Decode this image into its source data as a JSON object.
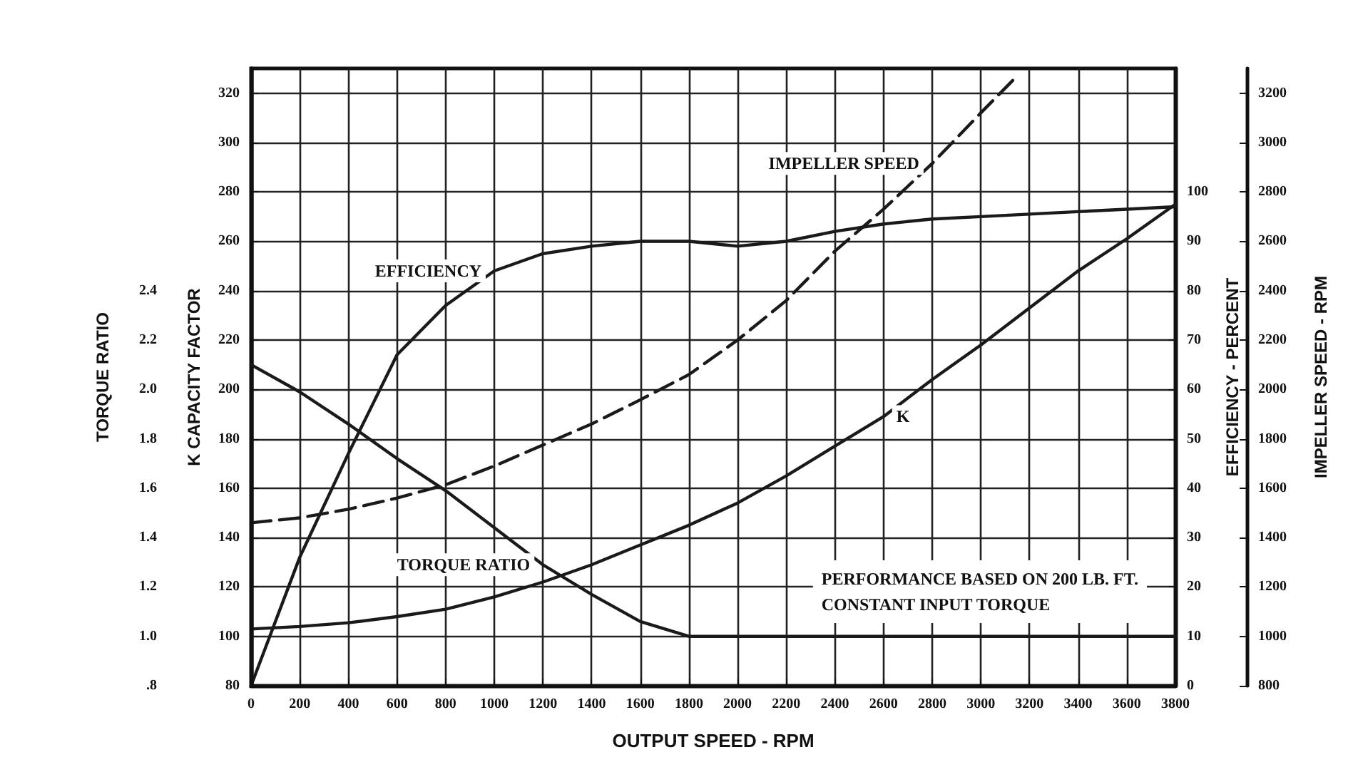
{
  "chart_data": [
    {
      "type": "line",
      "xlabel": "OUTPUT SPEED - RPM",
      "ylabel": "K CAPACITY FACTOR",
      "y2label": "EFFICIENCY - PERCENT",
      "y3label": "IMPELLER SPEED - RPM",
      "x": [
        0,
        200,
        400,
        600,
        800,
        1000,
        1200,
        1400,
        1600,
        1800,
        2000,
        2200,
        2400,
        2600,
        2800,
        3000,
        3200,
        3400,
        3600,
        3800
      ],
      "xlim": [
        0,
        3800
      ],
      "xticks": [
        0,
        200,
        400,
        600,
        800,
        1000,
        1200,
        1400,
        1600,
        1800,
        2000,
        2200,
        2400,
        2600,
        2800,
        3000,
        3200,
        3400,
        3600,
        3800
      ],
      "ylim": [
        80,
        330
      ],
      "yticks": [
        80,
        100,
        120,
        140,
        160,
        180,
        200,
        220,
        240,
        260,
        280,
        300,
        320
      ],
      "y2lim": [
        0,
        125
      ],
      "y2ticks": [
        0,
        10,
        20,
        30,
        40,
        50,
        60,
        70,
        80,
        90,
        100
      ],
      "y3lim": [
        800,
        3300
      ],
      "y3ticks": [
        800,
        1000,
        1200,
        1400,
        1600,
        1800,
        2000,
        2200,
        2400,
        2600,
        2800,
        3000,
        3200
      ],
      "series": [
        {
          "name": "EFFICIENCY",
          "color": "#1a1a1a",
          "axis": "y2",
          "values": [
            0,
            26,
            47,
            67,
            77,
            84,
            87.5,
            89,
            90,
            90,
            89,
            90,
            92,
            93.5,
            94.5,
            95,
            95.5,
            96,
            96.5,
            97
          ]
        },
        {
          "name": "IMPELLER SPEED",
          "color": "#1a1a1a",
          "axis": "y3",
          "line_style": "dashed",
          "x": [
            0,
            200,
            400,
            600,
            800,
            1000,
            1200,
            1400,
            1600,
            1800,
            2000,
            2200,
            2400,
            2600,
            2800,
            3000,
            3150
          ],
          "values": [
            1460,
            1480,
            1515,
            1560,
            1614,
            1690,
            1775,
            1860,
            1958,
            2060,
            2200,
            2360,
            2560,
            2730,
            2915,
            3120,
            3270
          ]
        },
        {
          "name": "K",
          "color": "#1a1a1a",
          "values": [
            103,
            104,
            105.5,
            108,
            111,
            116,
            122,
            129,
            137,
            145,
            154,
            165,
            177,
            189,
            204,
            218,
            233,
            248,
            261,
            275
          ]
        }
      ],
      "annotations": [
        "PERFORMANCE BASED ON 200 LB. FT.\nCONSTANT INPUT TORQUE"
      ],
      "grid": true,
      "legend": false,
      "marker": "none",
      "line_style": "solid"
    },
    {
      "type": "line",
      "ylabel": "TORQUE RATIO",
      "x": [
        0,
        200,
        400,
        600,
        800,
        1000,
        1200,
        1400,
        1600,
        1800,
        2000,
        2200,
        2400,
        2600,
        2800,
        3000,
        3200,
        3400,
        3600,
        3800
      ],
      "xlim": [
        0,
        3800
      ],
      "ylim": [
        0.8,
        3.3
      ],
      "yticks": [
        {
          "value": 0.8,
          "label": ".8"
        },
        {
          "value": 1,
          "label": "1.0"
        },
        1.2,
        1.4,
        1.6,
        1.8,
        {
          "value": 2,
          "label": "2.0"
        },
        2.2,
        2.4
      ],
      "tick_labels": "y",
      "series": [
        {
          "name": "TORQUE RATIO",
          "color": "#1a1a1a",
          "values": [
            2.1,
            1.99,
            1.86,
            1.72,
            1.59,
            1.44,
            1.29,
            1.17,
            1.06,
            1.0,
            1.0,
            1.0,
            1.0,
            1.0,
            1.0,
            1.0,
            1.0,
            1.0,
            1.0,
            1.0
          ]
        }
      ],
      "marker": "none",
      "line_style": "solid"
    }
  ]
}
